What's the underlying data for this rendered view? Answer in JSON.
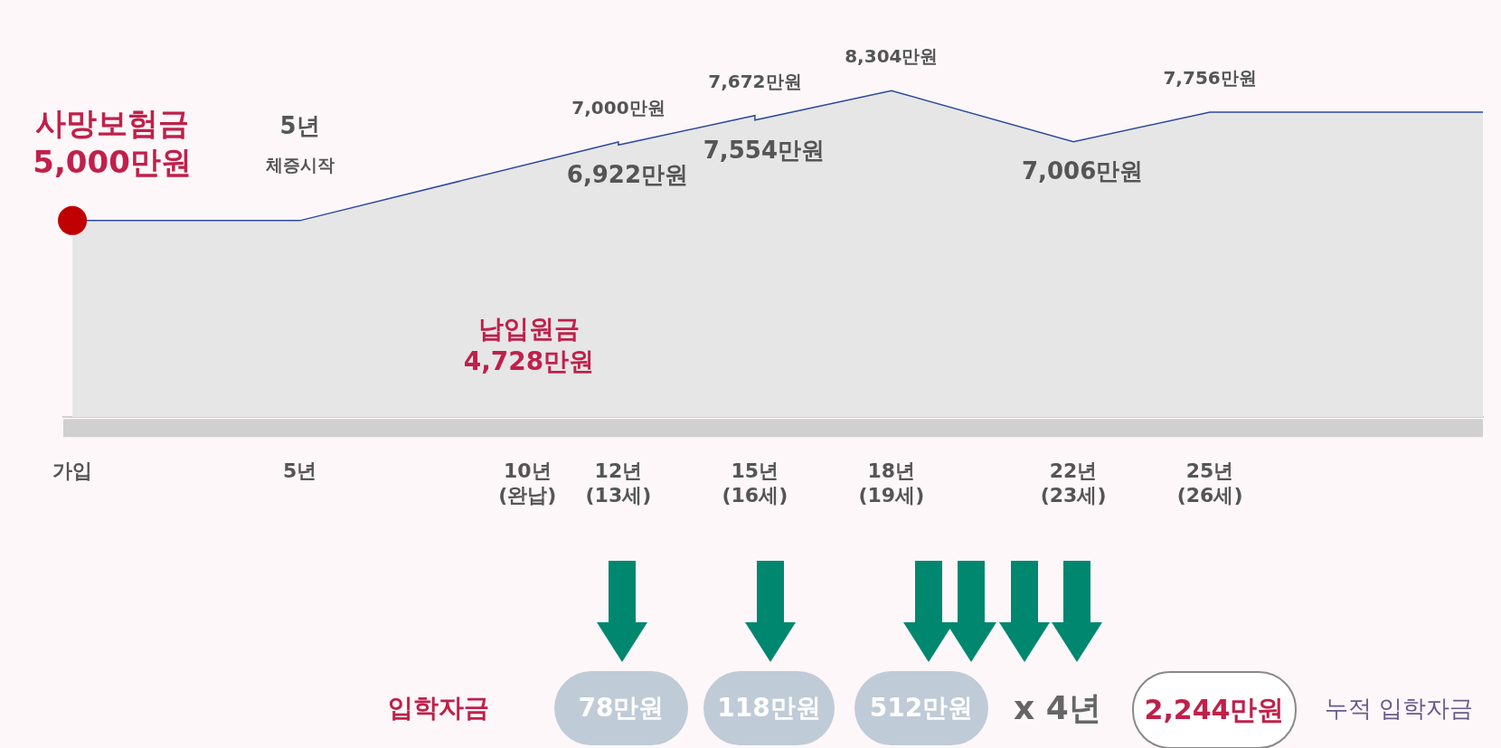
{
  "chart_data": {
    "type": "area",
    "series": [
      {
        "color": "#2e4a9a",
        "x": [
          0,
          5,
          12,
          12,
          15,
          15,
          18,
          22,
          25,
          31
        ],
        "values": [
          5000,
          5000,
          7000,
          6922,
          7672,
          7554,
          8304,
          7006,
          7756,
          7756
        ],
        "value_labels": [
          "5,000만원",
          null,
          "7,000만원",
          "6,922만원",
          "7,672만원",
          "7,554만원",
          "8,304만원",
          "7,006만원",
          "7,756만원",
          null
        ]
      },
      {
        "type": "scatter",
        "color": "#c00000",
        "marker": "circle",
        "x": [
          0
        ],
        "values": [
          5000
        ]
      }
    ],
    "xlim": [
      -0.2,
      31
    ],
    "xticks": [
      {
        "value": 0,
        "label": "가입"
      },
      {
        "value": 5,
        "label": "5년"
      },
      {
        "value": 10,
        "label": "10년\n(완납)"
      },
      {
        "value": 12,
        "label": "12년\n(13세)"
      },
      {
        "value": 15,
        "label": "15년\n(16세)"
      },
      {
        "value": 18,
        "label": "18년\n(19세)"
      },
      {
        "value": 22,
        "label": "22년\n(23세)"
      },
      {
        "value": 25,
        "label": "25년\n(26세)"
      }
    ],
    "tick_labels": "x",
    "grid": false,
    "legend": false,
    "annotations": [
      {
        "text": "사망보험금",
        "x": 0,
        "y": 5000
      },
      {
        "text": "5년\n체증시작",
        "x": 5,
        "y": 5000
      },
      "납입원금\n4,728만원",
      "입학자금",
      "78만원",
      "118만원",
      "512만원",
      "x 4년",
      "2,244만원",
      "누적 입학자금"
    ]
  }
}
